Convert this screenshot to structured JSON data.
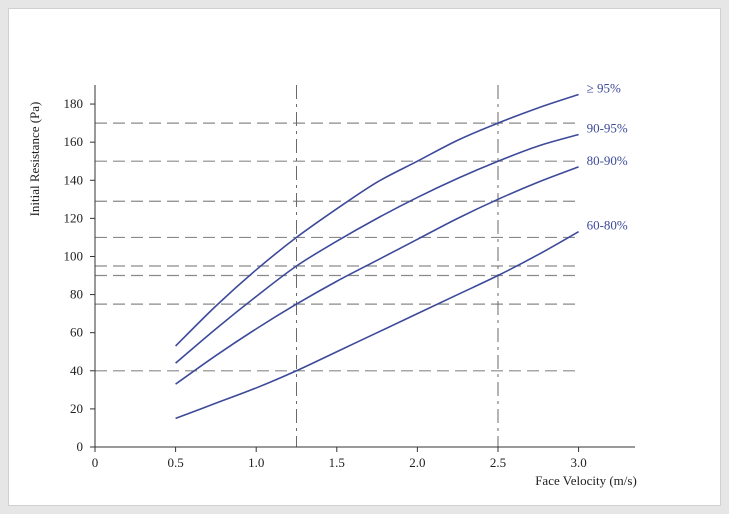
{
  "chart_data": {
    "type": "line",
    "xlabel": "Face Velocity (m/s)",
    "ylabel": "Initial Resistance (Pa)",
    "xlim": [
      0,
      3.35
    ],
    "ylim": [
      0,
      190
    ],
    "x_ticks": [
      0,
      0.5,
      1.0,
      1.5,
      2.0,
      2.5,
      3.0
    ],
    "x_tick_labels": [
      "0",
      "0.5",
      "1.0",
      "1.5",
      "2.0",
      "2.5",
      "3.0"
    ],
    "y_ticks": [
      0,
      20,
      40,
      60,
      80,
      100,
      120,
      140,
      160,
      180
    ],
    "y_tick_labels": [
      "0",
      "20",
      "40",
      "60",
      "80",
      "100",
      "120",
      "140",
      "160",
      "180"
    ],
    "line_color": "#3d4a9a",
    "reference_lines": {
      "vertical_x": [
        1.25,
        2.5
      ],
      "horizontal_y": [
        170,
        150,
        129,
        110,
        95,
        90,
        75,
        40
      ]
    },
    "series": [
      {
        "name": "≥ 95%",
        "x": [
          0.5,
          0.75,
          1.0,
          1.25,
          1.5,
          1.75,
          2.0,
          2.25,
          2.5,
          2.75,
          3.0
        ],
        "y": [
          53,
          74,
          93,
          110,
          125,
          139,
          150,
          161,
          170,
          178,
          185
        ]
      },
      {
        "name": "90-95%",
        "x": [
          0.5,
          0.75,
          1.0,
          1.25,
          1.5,
          1.75,
          2.0,
          2.25,
          2.5,
          2.75,
          3.0
        ],
        "y": [
          44,
          62,
          79,
          95,
          108,
          120,
          131,
          141,
          150,
          158,
          164
        ]
      },
      {
        "name": "80-90%",
        "x": [
          0.5,
          0.75,
          1.0,
          1.25,
          1.5,
          1.75,
          2.0,
          2.25,
          2.5,
          2.75,
          3.0
        ],
        "y": [
          33,
          48,
          62,
          75,
          87,
          98,
          109,
          120,
          130,
          139,
          147
        ]
      },
      {
        "name": "60-80%",
        "x": [
          0.5,
          0.75,
          1.0,
          1.25,
          1.5,
          1.75,
          2.0,
          2.25,
          2.5,
          2.75,
          3.0
        ],
        "y": [
          15,
          23,
          31,
          40,
          50,
          60,
          70,
          80,
          90,
          101,
          113
        ]
      }
    ]
  }
}
